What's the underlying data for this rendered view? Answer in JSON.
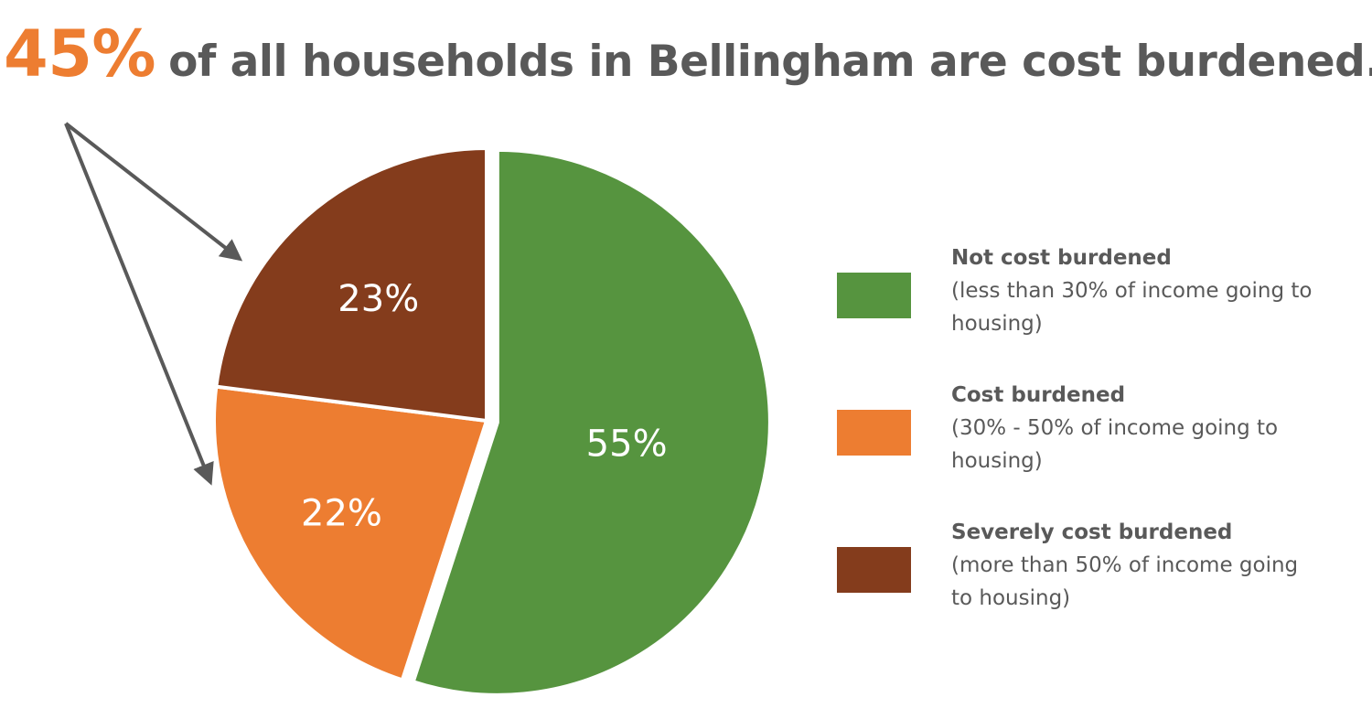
{
  "headline": {
    "highlight": "45%",
    "text": "of all households in Bellingham are cost burdened.",
    "highlight_color": "#ED7D31",
    "text_color": "#595959"
  },
  "chart_data": {
    "type": "pie",
    "slices": [
      {
        "label": "55%",
        "value": 55,
        "color": "#56943F"
      },
      {
        "label": "22%",
        "value": 22,
        "color": "#ED7D31"
      },
      {
        "label": "23%",
        "value": 23,
        "color": "#843C1C"
      }
    ],
    "exploded": "Not cost burdened",
    "annotation": "Arrows point from the 45% headline to the Cost burdened and Severely cost burdened slices",
    "legend_placement": "right",
    "legend": [
      {
        "title": "Not cost burdened",
        "description": "(less than 30% of income going to housing)",
        "color": "#56943F"
      },
      {
        "title": "Cost burdened",
        "description": "(30% - 50% of income going to housing)",
        "color": "#ED7D31"
      },
      {
        "title": "Severely cost burdened",
        "description": "(more than 50% of income going to housing)",
        "color": "#843C1C"
      }
    ]
  }
}
